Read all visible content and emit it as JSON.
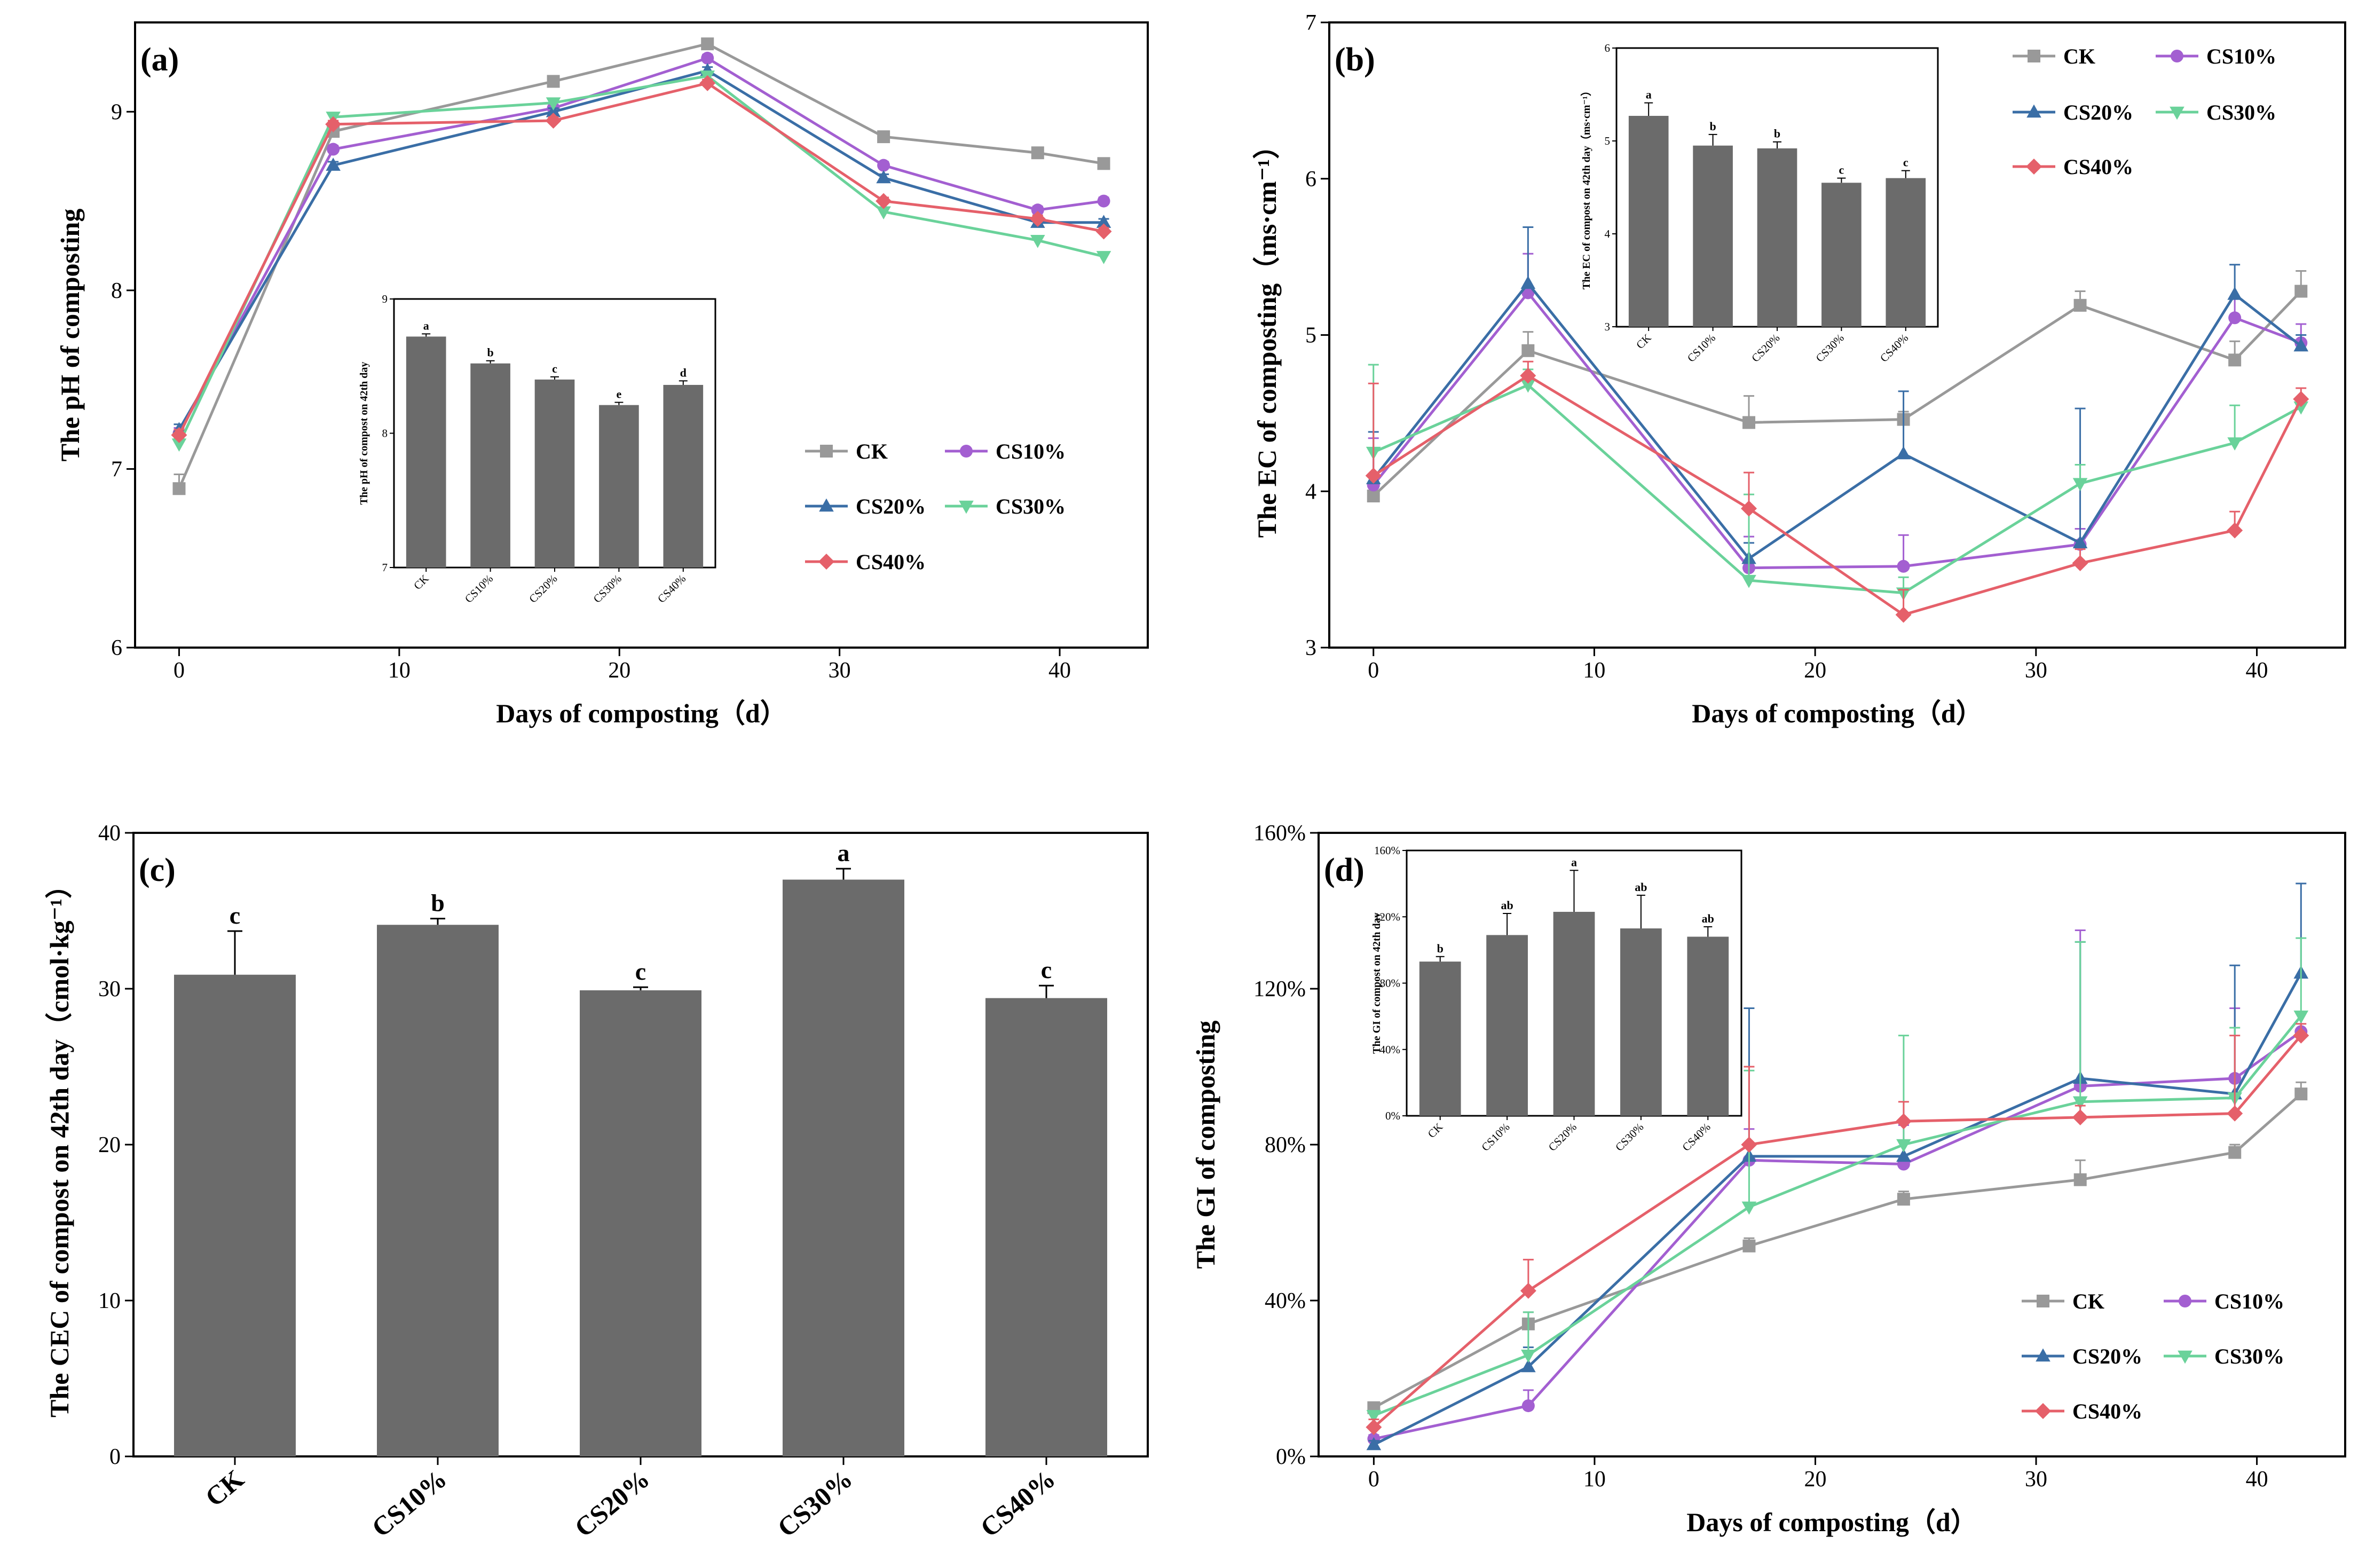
{
  "colors": {
    "CK": "#999999",
    "CS10%": "#a35fd1",
    "CS20%": "#3a6ea6",
    "CS30%": "#6ad29a",
    "CS40%": "#e5606a",
    "bar": "#6b6b6b"
  },
  "markers": {
    "CK": "square",
    "CS10%": "circle",
    "CS20%": "triangle-up",
    "CS30%": "triangle-down",
    "CS40%": "diamond"
  },
  "chart_data": [
    {
      "id": "a",
      "type": "line",
      "panel_label": "(a)",
      "xlabel": "Days of composting（d）",
      "ylabel": "The pH of composting",
      "xlim": [
        -2,
        44
      ],
      "ylim": [
        6,
        9.5
      ],
      "xticks": [
        0,
        10,
        20,
        30,
        40
      ],
      "yticks": [
        6,
        7,
        8,
        9
      ],
      "x": [
        0,
        7,
        17,
        24,
        32,
        39,
        42
      ],
      "series": [
        {
          "name": "CK",
          "values": [
            6.89,
            8.89,
            9.17,
            9.38,
            8.86,
            8.77,
            8.71
          ],
          "errors": [
            0.08,
            0.03,
            0.02,
            0.02,
            0.02,
            0.03,
            0.02
          ]
        },
        {
          "name": "CS10%",
          "values": [
            7.2,
            8.79,
            9.02,
            9.3,
            8.7,
            8.45,
            8.5
          ],
          "errors": [
            0.03,
            0.02,
            0.02,
            0.02,
            0.02,
            0.02,
            0.02
          ]
        },
        {
          "name": "CS20%",
          "values": [
            7.22,
            8.7,
            9.0,
            9.23,
            8.63,
            8.38,
            8.38
          ],
          "errors": [
            0.03,
            0.02,
            0.02,
            0.02,
            0.02,
            0.02,
            0.02
          ]
        },
        {
          "name": "CS30%",
          "values": [
            7.14,
            8.97,
            9.05,
            9.2,
            8.44,
            8.28,
            8.19
          ],
          "errors": [
            0.03,
            0.02,
            0.02,
            0.02,
            0.02,
            0.02,
            0.02
          ]
        },
        {
          "name": "CS40%",
          "values": [
            7.19,
            8.93,
            8.95,
            9.16,
            8.5,
            8.4,
            8.33
          ],
          "errors": [
            0.03,
            0.02,
            0.02,
            0.02,
            0.02,
            0.02,
            0.02
          ]
        }
      ],
      "legend_position": "center-right",
      "inset": {
        "type": "bar",
        "ylabel": "The pH of compost on 42th day",
        "categories": [
          "CK",
          "CS10%",
          "CS20%",
          "CS30%",
          "CS40%"
        ],
        "values": [
          8.72,
          8.52,
          8.4,
          8.21,
          8.36
        ],
        "errors": [
          0.02,
          0.02,
          0.02,
          0.02,
          0.03
        ],
        "letters": [
          "a",
          "b",
          "c",
          "e",
          "d"
        ],
        "ylim": [
          7,
          9
        ],
        "yticks": [
          7,
          8,
          9
        ]
      }
    },
    {
      "id": "b",
      "type": "line",
      "panel_label": "(b)",
      "xlabel": "Days of composting（d）",
      "ylabel": "The EC of composting（ms·cm⁻¹）",
      "xlim": [
        -2,
        44
      ],
      "ylim": [
        3,
        7
      ],
      "xticks": [
        0,
        10,
        20,
        30,
        40
      ],
      "yticks": [
        3,
        4,
        5,
        6,
        7
      ],
      "x": [
        0,
        7,
        17,
        24,
        32,
        39,
        42
      ],
      "series": [
        {
          "name": "CK",
          "values": [
            3.97,
            4.9,
            4.44,
            4.46,
            5.19,
            4.84,
            5.28
          ],
          "errors": [
            0.05,
            0.12,
            0.17,
            0.05,
            0.09,
            0.12,
            0.13
          ]
        },
        {
          "name": "CS10%",
          "values": [
            4.04,
            5.27,
            3.51,
            3.52,
            3.66,
            5.11,
            4.95
          ],
          "errors": [
            0.3,
            0.25,
            0.2,
            0.2,
            0.1,
            0.12,
            0.12
          ]
        },
        {
          "name": "CS20%",
          "values": [
            4.08,
            5.33,
            3.57,
            4.24,
            3.67,
            5.26,
            4.93
          ],
          "errors": [
            0.3,
            0.36,
            0.1,
            0.4,
            0.86,
            0.19,
            0.07
          ]
        },
        {
          "name": "CS30%",
          "values": [
            4.25,
            4.68,
            3.43,
            3.35,
            4.05,
            4.31,
            4.54
          ],
          "errors": [
            0.56,
            0.1,
            0.55,
            0.1,
            0.12,
            0.24,
            0.06
          ]
        },
        {
          "name": "CS40%",
          "values": [
            4.1,
            4.74,
            3.89,
            3.21,
            3.54,
            3.75,
            4.59
          ],
          "errors": [
            0.59,
            0.09,
            0.23,
            0.16,
            0.09,
            0.12,
            0.07
          ]
        }
      ],
      "legend_position": "top-right",
      "inset": {
        "type": "bar",
        "ylabel": "The EC of compost on 42th day（ms·cm⁻¹）",
        "categories": [
          "CK",
          "CS10%",
          "CS20%",
          "CS30%",
          "CS40%"
        ],
        "values": [
          5.27,
          4.95,
          4.92,
          4.55,
          4.6
        ],
        "errors": [
          0.14,
          0.12,
          0.07,
          0.05,
          0.08
        ],
        "letters": [
          "a",
          "b",
          "b",
          "c",
          "c"
        ],
        "ylim": [
          3,
          6
        ],
        "yticks": [
          3,
          4,
          5,
          6
        ]
      }
    },
    {
      "id": "c",
      "type": "bar",
      "panel_label": "(c)",
      "xlabel": "",
      "ylabel": "The CEC of compost on 42th day（cmol·kg⁻¹）",
      "categories": [
        "CK",
        "CS10%",
        "CS20%",
        "CS30%",
        "CS40%"
      ],
      "values": [
        30.9,
        34.1,
        29.9,
        37.0,
        29.4
      ],
      "errors": [
        2.8,
        0.4,
        0.2,
        0.7,
        0.8
      ],
      "letters": [
        "c",
        "b",
        "c",
        "a",
        "c"
      ],
      "ylim": [
        0,
        40
      ],
      "yticks": [
        0,
        10,
        20,
        30,
        40
      ]
    },
    {
      "id": "d",
      "type": "line",
      "panel_label": "(d)",
      "xlabel": "Days of composting（d）",
      "ylabel": "The GI of composting",
      "xlim": [
        -2.5,
        44
      ],
      "ylim": [
        0,
        160
      ],
      "xticks": [
        0,
        10,
        20,
        30,
        40
      ],
      "yticks": [
        0,
        40,
        80,
        120,
        160
      ],
      "ytick_suffix": "%",
      "x": [
        0,
        7,
        17,
        24,
        32,
        39,
        42
      ],
      "series": [
        {
          "name": "CK",
          "values": [
            12.5,
            34,
            54,
            66,
            71,
            78,
            93
          ],
          "errors": [
            1,
            3,
            2,
            2,
            5,
            2,
            3
          ]
        },
        {
          "name": "CS10%",
          "values": [
            4.5,
            13,
            76,
            75,
            95,
            97,
            109
          ],
          "errors": [
            1,
            4,
            8,
            10,
            40,
            18,
            5
          ]
        },
        {
          "name": "CS20%",
          "values": [
            3,
            23,
            77,
            77,
            97,
            93,
            124
          ],
          "errors": [
            1,
            5,
            38,
            4,
            35,
            33,
            23
          ]
        },
        {
          "name": "CS30%",
          "values": [
            10.5,
            26,
            64,
            80,
            91,
            92,
            113
          ],
          "errors": [
            1,
            11,
            35,
            28,
            41,
            18,
            20
          ]
        },
        {
          "name": "CS40%",
          "values": [
            7.5,
            42.5,
            80,
            86,
            87,
            88,
            108
          ],
          "errors": [
            2,
            8,
            20,
            5,
            3,
            20,
            3
          ]
        }
      ],
      "legend_position": "lower-right",
      "inset": {
        "type": "bar",
        "ylabel": "The GI of compost on 42th day",
        "categories": [
          "CK",
          "CS10%",
          "CS20%",
          "CS30%",
          "CS40%"
        ],
        "values": [
          93,
          109,
          123,
          113,
          108
        ],
        "errors": [
          3,
          13,
          25,
          20,
          6
        ],
        "letters": [
          "b",
          "ab",
          "a",
          "ab",
          "ab"
        ],
        "ylim": [
          0,
          160
        ],
        "yticks": [
          0,
          40,
          80,
          120,
          160
        ],
        "ytick_suffix": "%"
      }
    }
  ]
}
